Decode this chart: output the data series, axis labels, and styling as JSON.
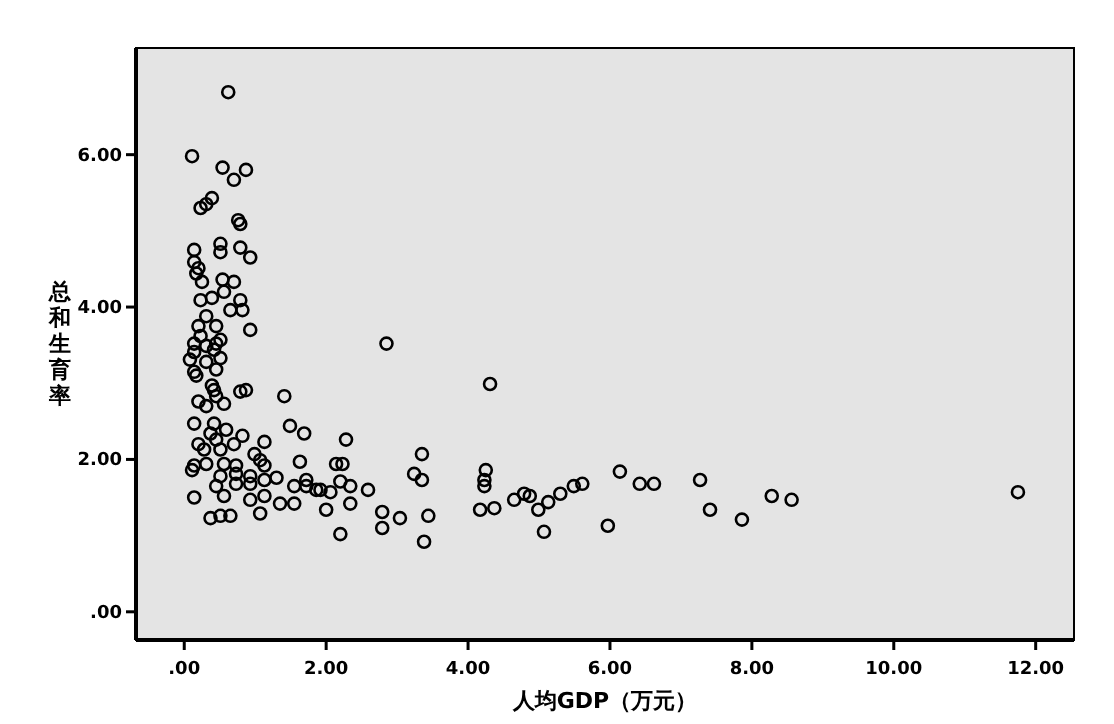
{
  "chart_data": {
    "type": "scatter",
    "xlabel": "人均GDP（万元）",
    "ylabel": "总和生育率",
    "marker": "circle",
    "grid": false,
    "xlim": [
      -0.68,
      12.54
    ],
    "ylim": [
      -0.37,
      7.4
    ],
    "xticks": [
      {
        "value": 0,
        "label": ".00"
      },
      {
        "value": 2,
        "label": "2.00"
      },
      {
        "value": 4,
        "label": "4.00"
      },
      {
        "value": 6,
        "label": "6.00"
      },
      {
        "value": 8,
        "label": "8.00"
      },
      {
        "value": 10,
        "label": "10.00"
      },
      {
        "value": 12,
        "label": "12.00"
      }
    ],
    "yticks": [
      {
        "value": 0,
        "label": ".00"
      },
      {
        "value": 2,
        "label": "2.00"
      },
      {
        "value": 4,
        "label": "4.00"
      },
      {
        "value": 6,
        "label": "6.00"
      }
    ],
    "series": [
      {
        "color": "#000000",
        "x": [
          0.62,
          0.11,
          0.54,
          0.87,
          0.7,
          0.31,
          0.39,
          0.23,
          0.76,
          0.79,
          0.14,
          0.51,
          0.51,
          0.79,
          0.93,
          0.14,
          0.2,
          0.17,
          0.54,
          0.25,
          0.7,
          0.39,
          0.56,
          0.79,
          0.23,
          0.65,
          0.31,
          0.82,
          0.45,
          0.2,
          0.93,
          0.23,
          0.51,
          0.14,
          0.42,
          0.31,
          0.14,
          0.45,
          0.14,
          0.31,
          0.45,
          0.08,
          0.51,
          0.17,
          0.39,
          0.42,
          0.45,
          0.79,
          0.87,
          0.2,
          0.56,
          0.31,
          1.41,
          0.14,
          0.42,
          0.59,
          0.37,
          0.82,
          1.49,
          1.69,
          0.2,
          0.45,
          0.7,
          1.13,
          0.99,
          0.28,
          0.51,
          1.07,
          1.63,
          0.14,
          0.31,
          0.56,
          0.73,
          1.13,
          0.11,
          0.93,
          0.51,
          0.73,
          1.13,
          1.3,
          1.55,
          1.72,
          1.92,
          2.06,
          2.14,
          0.45,
          0.73,
          0.93,
          0.56,
          0.93,
          1.13,
          1.35,
          1.55,
          0.14,
          2.0,
          0.37,
          0.51,
          0.65,
          1.07,
          2.2,
          2.85,
          4.31,
          2.28,
          2.23,
          3.35,
          1.72,
          2.2,
          2.34,
          1.86,
          2.59,
          3.24,
          3.35,
          2.34,
          2.79,
          3.04,
          3.44,
          2.79,
          3.38,
          4.25,
          4.23,
          4.23,
          4.17,
          4.37,
          4.65,
          4.79,
          4.87,
          4.99,
          5.13,
          5.3,
          5.49,
          5.61,
          5.07,
          5.97,
          6.14,
          6.42,
          6.62,
          7.27,
          7.41,
          7.86,
          8.28,
          8.56,
          11.75
        ],
        "values": [
          6.82,
          5.98,
          5.83,
          5.8,
          5.67,
          5.35,
          5.43,
          5.3,
          5.14,
          5.09,
          4.75,
          4.83,
          4.72,
          4.78,
          4.65,
          4.59,
          4.51,
          4.44,
          4.36,
          4.33,
          4.33,
          4.12,
          4.2,
          4.09,
          4.09,
          3.96,
          3.88,
          3.96,
          3.75,
          3.75,
          3.7,
          3.62,
          3.57,
          3.41,
          3.44,
          3.28,
          3.15,
          3.18,
          3.52,
          3.49,
          3.52,
          3.31,
          3.33,
          3.1,
          2.97,
          2.91,
          2.83,
          2.89,
          2.91,
          2.76,
          2.73,
          2.7,
          2.83,
          2.47,
          2.47,
          2.39,
          2.34,
          2.31,
          2.44,
          2.34,
          2.2,
          2.26,
          2.2,
          2.23,
          2.07,
          2.13,
          2.13,
          1.99,
          1.97,
          1.92,
          1.94,
          1.94,
          1.92,
          1.92,
          1.86,
          1.78,
          1.78,
          1.81,
          1.73,
          1.76,
          1.65,
          1.65,
          1.6,
          1.57,
          1.94,
          1.65,
          1.68,
          1.68,
          1.52,
          1.47,
          1.52,
          1.42,
          1.42,
          1.5,
          1.34,
          1.23,
          1.26,
          1.26,
          1.29,
          1.02,
          3.52,
          2.99,
          2.26,
          1.94,
          2.07,
          1.73,
          1.71,
          1.65,
          1.6,
          1.6,
          1.81,
          1.73,
          1.42,
          1.31,
          1.23,
          1.26,
          1.1,
          0.92,
          1.86,
          1.73,
          1.65,
          1.34,
          1.36,
          1.47,
          1.55,
          1.52,
          1.34,
          1.44,
          1.55,
          1.65,
          1.68,
          1.05,
          1.13,
          1.84,
          1.68,
          1.68,
          1.73,
          1.34,
          1.21,
          1.52,
          1.47,
          1.57
        ]
      }
    ]
  }
}
